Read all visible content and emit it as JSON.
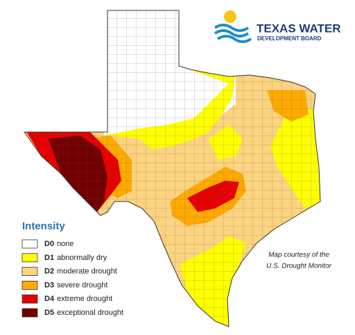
{
  "logo": {
    "line1": "TEXAS WATER",
    "line2": "DEVELOPMENT BOARD"
  },
  "legend": {
    "title": "Intensity",
    "items": [
      {
        "code": "D0",
        "label": "none",
        "color": "#ffffff"
      },
      {
        "code": "D1",
        "label": "abnormally dry",
        "color": "#ffff00"
      },
      {
        "code": "D2",
        "label": "moderate drought",
        "color": "#fcd37f"
      },
      {
        "code": "D3",
        "label": "severe drought",
        "color": "#ffaa00"
      },
      {
        "code": "D4",
        "label": "extreme drought",
        "color": "#e60000"
      },
      {
        "code": "D5",
        "label": "exceptional drought",
        "color": "#730000"
      }
    ]
  },
  "credit": {
    "line1": "Map courtesy of the",
    "line2": "U.S. Drought Monitor"
  }
}
